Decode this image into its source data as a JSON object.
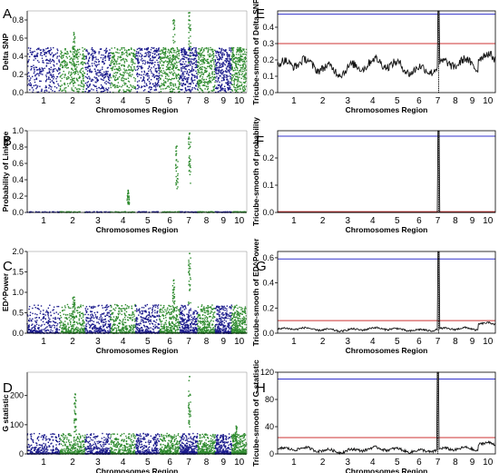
{
  "chart_data": [
    {
      "panel": "A",
      "type": "scatter",
      "ylabel": "Delta SNP",
      "xlabel": "Chromosomes Region",
      "ylim": [
        0,
        0.9
      ],
      "yticks": [
        0.0,
        0.2,
        0.4,
        0.6,
        0.8
      ],
      "categories": [
        "1",
        "2",
        "3",
        "4",
        "5",
        "6",
        "7",
        "8",
        "9",
        "10"
      ],
      "series_colors": [
        "#1a1a8c",
        "#2e8b2e"
      ],
      "peaks": [
        [
          2.55,
          0.66
        ],
        [
          6.7,
          0.8
        ],
        [
          7.55,
          0.88
        ]
      ]
    },
    {
      "panel": "B",
      "type": "scatter",
      "ylabel": "Probability of Linkage",
      "xlabel": "Chromosomes Region",
      "ylim": [
        0,
        1.0
      ],
      "yticks": [
        0.0,
        0.2,
        0.4,
        0.6,
        0.8,
        1.0
      ],
      "categories": [
        "1",
        "2",
        "3",
        "4",
        "5",
        "6",
        "7",
        "8",
        "9",
        "10"
      ],
      "series_colors": [
        "#1a1a8c",
        "#2e8b2e"
      ],
      "peaks": [
        [
          4.7,
          0.27
        ],
        [
          6.85,
          0.81
        ],
        [
          7.55,
          0.97
        ]
      ]
    },
    {
      "panel": "C",
      "type": "scatter",
      "ylabel": "ED^Power",
      "xlabel": "Chromosomes Region",
      "ylim": [
        0,
        2.0
      ],
      "yticks": [
        0.0,
        0.5,
        1.0,
        1.5,
        2.0
      ],
      "categories": [
        "1",
        "2",
        "3",
        "4",
        "5",
        "6",
        "7",
        "8",
        "9",
        "10"
      ],
      "series_colors": [
        "#1a1a8c",
        "#2e8b2e"
      ],
      "peaks": [
        [
          2.55,
          0.88
        ],
        [
          6.7,
          1.3
        ],
        [
          7.55,
          1.95
        ]
      ]
    },
    {
      "panel": "D",
      "type": "scatter",
      "ylabel": "G statistic",
      "xlabel": "Chromosomes Region",
      "ylim": [
        0,
        280
      ],
      "yticks": [
        0,
        100,
        200
      ],
      "categories": [
        "1",
        "2",
        "3",
        "4",
        "5",
        "6",
        "7",
        "8",
        "9",
        "10"
      ],
      "series_colors": [
        "#1a1a8c",
        "#2e8b2e"
      ],
      "peaks": [
        [
          2.6,
          205
        ],
        [
          7.55,
          265
        ],
        [
          10.3,
          95
        ]
      ]
    },
    {
      "panel": "E",
      "type": "line",
      "ylabel": "Tricube-smooth of Delta SNP",
      "xlabel": "Chromosomes Region",
      "ylim": [
        0,
        0.5
      ],
      "yticks": [
        0.0,
        0.1,
        0.2,
        0.3,
        0.4
      ],
      "categories": [
        "1",
        "2",
        "3",
        "4",
        "5",
        "6",
        "7",
        "8",
        "9",
        "10"
      ],
      "thresholds": [
        {
          "value": 0.48,
          "color": "#3333cc"
        },
        {
          "value": 0.3,
          "color": "#cc3333"
        }
      ],
      "peak": [
        7.55,
        0.5
      ]
    },
    {
      "panel": "F",
      "type": "line",
      "ylabel": "Tricube-smooth of probability",
      "xlabel": "Chromosomes Region",
      "ylim": [
        0,
        0.3
      ],
      "yticks": [
        0.0,
        0.1,
        0.2
      ],
      "categories": [
        "1",
        "2",
        "3",
        "4",
        "5",
        "6",
        "7",
        "8",
        "9",
        "10"
      ],
      "thresholds": [
        {
          "value": 0.28,
          "color": "#3333cc"
        },
        {
          "value": 0.003,
          "color": "#cc3333"
        }
      ],
      "peak": [
        7.55,
        0.3
      ]
    },
    {
      "panel": "G",
      "type": "line",
      "ylabel": "Tricube-smooth of ED^Power",
      "xlabel": "Chromosomes Region",
      "ylim": [
        0,
        0.65
      ],
      "yticks": [
        0.0,
        0.2,
        0.4,
        0.6
      ],
      "categories": [
        "1",
        "2",
        "3",
        "4",
        "5",
        "6",
        "7",
        "8",
        "9",
        "10"
      ],
      "thresholds": [
        {
          "value": 0.59,
          "color": "#3333cc"
        },
        {
          "value": 0.1,
          "color": "#cc3333"
        }
      ],
      "peak": [
        7.55,
        0.65
      ]
    },
    {
      "panel": "H",
      "type": "line",
      "ylabel": "Tricube-smooth of G statistic",
      "xlabel": "Chromosomes Region",
      "ylim": [
        0,
        120
      ],
      "yticks": [
        0,
        40,
        80,
        120
      ],
      "categories": [
        "1",
        "2",
        "3",
        "4",
        "5",
        "6",
        "7",
        "8",
        "9",
        "10"
      ],
      "thresholds": [
        {
          "value": 110,
          "color": "#3333cc"
        },
        {
          "value": 24,
          "color": "#cc3333"
        }
      ],
      "peak": [
        7.5,
        120
      ]
    }
  ]
}
